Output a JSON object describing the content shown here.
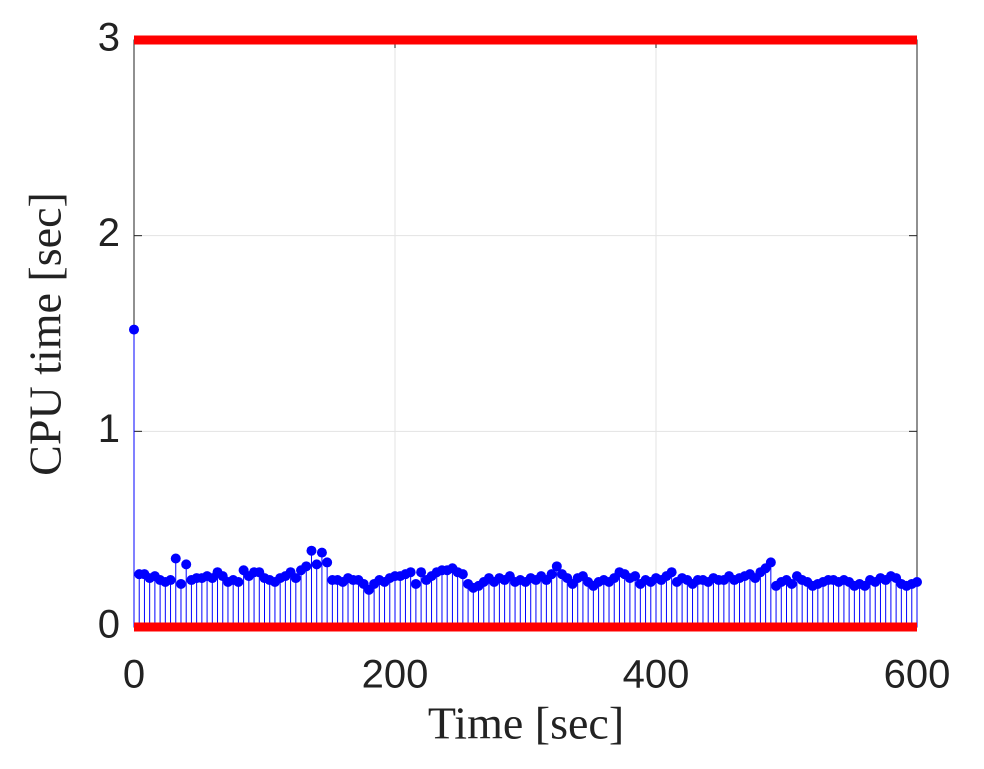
{
  "chart_data": {
    "type": "stem",
    "xlabel": "Time [sec]",
    "ylabel": "CPU time [sec]",
    "xlim": [
      0,
      600
    ],
    "ylim": [
      0,
      3
    ],
    "xticks": [
      0,
      200,
      400,
      600
    ],
    "yticks": [
      0,
      1,
      2,
      3
    ],
    "grid": true,
    "hlines": [
      0,
      3
    ],
    "hline_color": "#ff0000",
    "x": [
      0,
      4,
      8,
      12,
      16,
      20,
      24,
      28,
      32,
      36,
      40,
      44,
      48,
      52,
      56,
      60,
      64,
      68,
      72,
      76,
      80,
      84,
      88,
      92,
      96,
      100,
      104,
      108,
      112,
      116,
      120,
      124,
      128,
      132,
      136,
      140,
      144,
      148,
      152,
      156,
      160,
      164,
      168,
      172,
      176,
      180,
      184,
      188,
      192,
      196,
      200,
      204,
      208,
      212,
      216,
      220,
      224,
      228,
      232,
      236,
      240,
      244,
      248,
      252,
      256,
      260,
      264,
      268,
      272,
      276,
      280,
      284,
      288,
      292,
      296,
      300,
      304,
      308,
      312,
      316,
      320,
      324,
      328,
      332,
      336,
      340,
      344,
      348,
      352,
      356,
      360,
      364,
      368,
      372,
      376,
      380,
      384,
      388,
      392,
      396,
      400,
      404,
      408,
      412,
      416,
      420,
      424,
      428,
      432,
      436,
      440,
      444,
      448,
      452,
      456,
      460,
      464,
      468,
      472,
      476,
      480,
      484,
      488,
      492,
      496,
      500,
      504,
      508,
      512,
      516,
      520,
      524,
      528,
      532,
      536,
      540,
      544,
      548,
      552,
      556,
      560,
      564,
      568,
      572,
      576,
      580,
      584,
      588,
      592,
      596,
      600
    ],
    "color": "#0000ff",
    "values": [
      1.52,
      0.27,
      0.27,
      0.25,
      0.26,
      0.24,
      0.23,
      0.24,
      0.35,
      0.22,
      0.32,
      0.24,
      0.25,
      0.25,
      0.26,
      0.25,
      0.28,
      0.26,
      0.23,
      0.24,
      0.23,
      0.29,
      0.26,
      0.28,
      0.28,
      0.25,
      0.24,
      0.23,
      0.25,
      0.26,
      0.28,
      0.25,
      0.29,
      0.31,
      0.39,
      0.32,
      0.38,
      0.33,
      0.24,
      0.24,
      0.23,
      0.25,
      0.24,
      0.24,
      0.22,
      0.19,
      0.22,
      0.24,
      0.23,
      0.25,
      0.26,
      0.26,
      0.27,
      0.28,
      0.22,
      0.28,
      0.24,
      0.26,
      0.28,
      0.29,
      0.29,
      0.3,
      0.28,
      0.27,
      0.22,
      0.2,
      0.21,
      0.23,
      0.25,
      0.23,
      0.25,
      0.24,
      0.26,
      0.23,
      0.24,
      0.23,
      0.25,
      0.24,
      0.26,
      0.24,
      0.27,
      0.31,
      0.27,
      0.25,
      0.22,
      0.25,
      0.26,
      0.23,
      0.21,
      0.23,
      0.24,
      0.23,
      0.25,
      0.28,
      0.27,
      0.25,
      0.26,
      0.22,
      0.24,
      0.23,
      0.25,
      0.24,
      0.26,
      0.28,
      0.23,
      0.25,
      0.24,
      0.22,
      0.24,
      0.24,
      0.23,
      0.25,
      0.24,
      0.24,
      0.26,
      0.24,
      0.25,
      0.26,
      0.27,
      0.25,
      0.28,
      0.3,
      0.33,
      0.21,
      0.23,
      0.24,
      0.22,
      0.26,
      0.24,
      0.23,
      0.21,
      0.22,
      0.23,
      0.24,
      0.24,
      0.23,
      0.24,
      0.23,
      0.21,
      0.22,
      0.21,
      0.24,
      0.23,
      0.25,
      0.24,
      0.26,
      0.25,
      0.22,
      0.21,
      0.22,
      0.23
    ]
  }
}
